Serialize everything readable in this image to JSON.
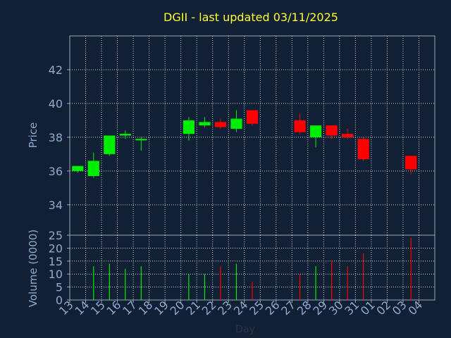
{
  "chart_data": {
    "type": "candlestick",
    "title": "DGII - last updated 03/11/2025",
    "ticker": "DGII",
    "xlabel": "Day",
    "x_ticks": [
      "13",
      "14",
      "15",
      "16",
      "17",
      "18",
      "19",
      "20",
      "21",
      "22",
      "23",
      "24",
      "25",
      "26",
      "27",
      "28",
      "29",
      "30",
      "31",
      "01",
      "02",
      "03",
      "04"
    ],
    "price_panel": {
      "ylabel": "Price",
      "ylim": [
        32.2,
        44
      ],
      "y_ticks": [
        34,
        36,
        38,
        40,
        42
      ],
      "grid": true
    },
    "volume_panel": {
      "ylabel": "Volume (0000)",
      "ylim": [
        0,
        25
      ],
      "y_ticks": [
        0,
        5,
        10,
        15,
        20,
        25
      ],
      "grid": true
    },
    "up_color": "#00ee00",
    "down_color": "#ff0000",
    "candles": [
      {
        "day": "13",
        "open": 36.0,
        "high": 36.3,
        "low": 35.9,
        "close": 36.3
      },
      {
        "day": "14",
        "open": 35.7,
        "high": 37.1,
        "low": 35.6,
        "close": 36.6
      },
      {
        "day": "15",
        "open": 37.0,
        "high": 38.1,
        "low": 36.9,
        "close": 38.1
      },
      {
        "day": "16",
        "open": 38.1,
        "high": 38.4,
        "low": 37.9,
        "close": 38.2
      },
      {
        "day": "17",
        "open": 37.9,
        "high": 38.0,
        "low": 37.2,
        "close": 37.9
      },
      {
        "day": "20",
        "open": 38.2,
        "high": 39.2,
        "low": 37.8,
        "close": 39.0
      },
      {
        "day": "21",
        "open": 38.7,
        "high": 39.2,
        "low": 38.6,
        "close": 38.9
      },
      {
        "day": "22",
        "open": 38.9,
        "high": 39.1,
        "low": 38.5,
        "close": 38.6
      },
      {
        "day": "23",
        "open": 38.5,
        "high": 39.6,
        "low": 38.3,
        "close": 39.1
      },
      {
        "day": "24",
        "open": 39.6,
        "high": 39.6,
        "low": 38.7,
        "close": 38.8
      },
      {
        "day": "27",
        "open": 39.0,
        "high": 39.4,
        "low": 38.2,
        "close": 38.3
      },
      {
        "day": "28",
        "open": 38.0,
        "high": 38.7,
        "low": 37.4,
        "close": 38.7
      },
      {
        "day": "29",
        "open": 38.7,
        "high": 38.7,
        "low": 37.9,
        "close": 38.1
      },
      {
        "day": "30",
        "open": 38.2,
        "high": 38.5,
        "low": 37.9,
        "close": 38.0
      },
      {
        "day": "31",
        "open": 37.9,
        "high": 38.0,
        "low": 36.6,
        "close": 36.7
      },
      {
        "day": "03",
        "open": 36.9,
        "high": 36.9,
        "low": 35.8,
        "close": 36.1
      }
    ],
    "volumes": [
      {
        "day": "13",
        "value": 0
      },
      {
        "day": "14",
        "value": 13
      },
      {
        "day": "15",
        "value": 14
      },
      {
        "day": "16",
        "value": 12
      },
      {
        "day": "17",
        "value": 13
      },
      {
        "day": "20",
        "value": 10
      },
      {
        "day": "21",
        "value": 10
      },
      {
        "day": "22",
        "value": 13
      },
      {
        "day": "23",
        "value": 14
      },
      {
        "day": "24",
        "value": 7
      },
      {
        "day": "27",
        "value": 10
      },
      {
        "day": "28",
        "value": 13
      },
      {
        "day": "29",
        "value": 15
      },
      {
        "day": "30",
        "value": 13
      },
      {
        "day": "31",
        "value": 18
      },
      {
        "day": "03",
        "value": 24
      }
    ]
  }
}
